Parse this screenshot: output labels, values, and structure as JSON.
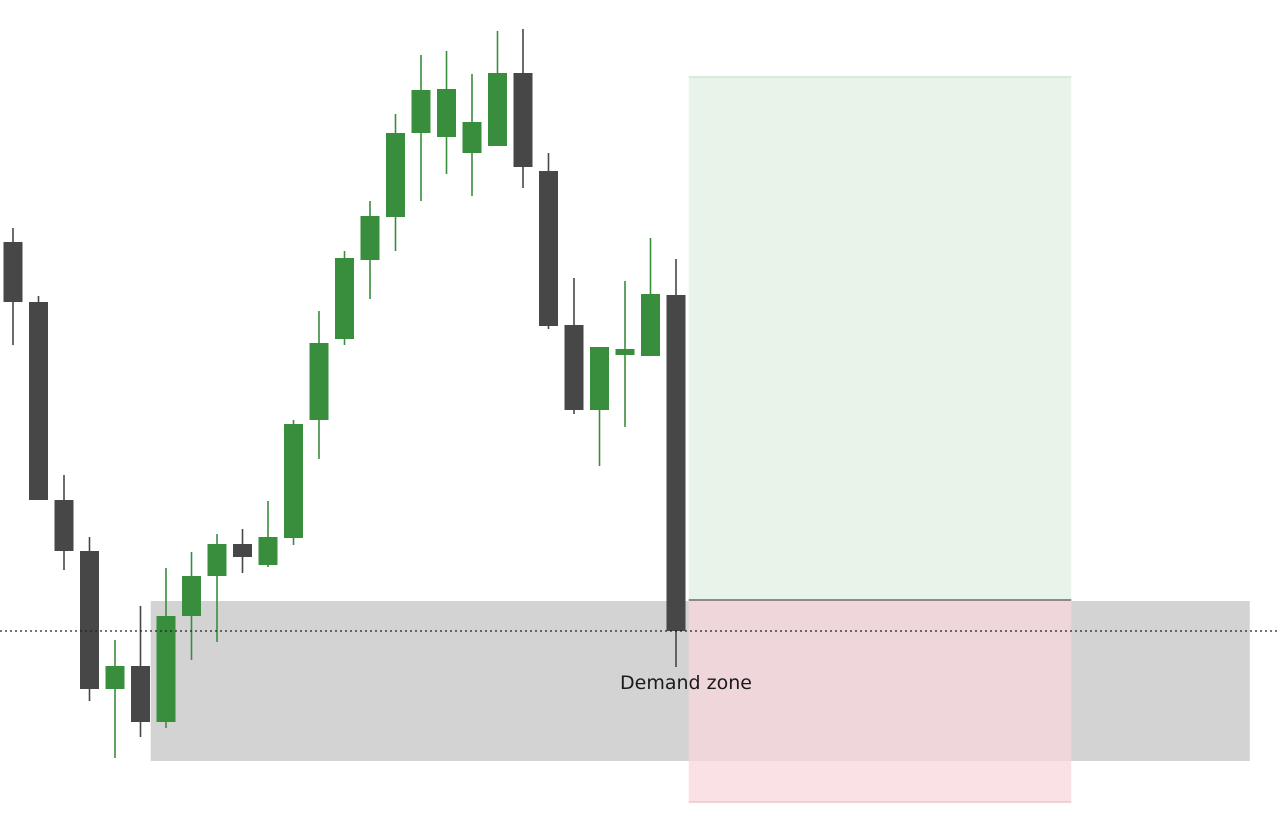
{
  "chart_data": {
    "type": "candlestick",
    "title": "",
    "xlabel": "",
    "ylabel": "",
    "grid": false,
    "axes_visible": false,
    "ylim": [
      0,
      823
    ],
    "colors": {
      "bullish": "#388e3c",
      "bearish": "#474747",
      "demand_zone": "#d3d3d3",
      "profit_zone": "#e0f0e2",
      "loss_zone": "#f8d7dd",
      "price_line": "#222222"
    },
    "candles": [
      {
        "open": 581,
        "high": 595,
        "low": 478,
        "close": 521
      },
      {
        "open": 521,
        "high": 527,
        "low": 323,
        "close": 323
      },
      {
        "open": 323,
        "high": 348,
        "low": 253,
        "close": 272
      },
      {
        "open": 272,
        "high": 286,
        "low": 122,
        "close": 134
      },
      {
        "open": 134,
        "high": 183,
        "low": 65,
        "close": 157
      },
      {
        "open": 157,
        "high": 217,
        "low": 86,
        "close": 101
      },
      {
        "open": 101,
        "high": 255,
        "low": 95,
        "close": 207
      },
      {
        "open": 207,
        "high": 271,
        "low": 163,
        "close": 247
      },
      {
        "open": 247,
        "high": 289,
        "low": 181,
        "close": 279
      },
      {
        "open": 279,
        "high": 294,
        "low": 250,
        "close": 266
      },
      {
        "open": 258,
        "high": 322,
        "low": 256,
        "close": 286
      },
      {
        "open": 285,
        "high": 403,
        "low": 278,
        "close": 399
      },
      {
        "open": 403,
        "high": 512,
        "low": 364,
        "close": 480
      },
      {
        "open": 484,
        "high": 572,
        "low": 478,
        "close": 565
      },
      {
        "open": 563,
        "high": 622,
        "low": 524,
        "close": 607
      },
      {
        "open": 606,
        "high": 709,
        "low": 572,
        "close": 690
      },
      {
        "open": 690,
        "high": 768,
        "low": 622,
        "close": 733
      },
      {
        "open": 686,
        "high": 772,
        "low": 649,
        "close": 734
      },
      {
        "open": 670,
        "high": 749,
        "low": 627,
        "close": 701
      },
      {
        "open": 677,
        "high": 792,
        "low": 678,
        "close": 750
      },
      {
        "open": 750,
        "high": 794,
        "low": 635,
        "close": 656
      },
      {
        "open": 652,
        "high": 670,
        "low": 494,
        "close": 497
      },
      {
        "open": 498,
        "high": 545,
        "low": 409,
        "close": 413
      },
      {
        "open": 413,
        "high": 474,
        "low": 357,
        "close": 476
      },
      {
        "open": 468,
        "high": 542,
        "low": 396,
        "close": 474
      },
      {
        "open": 467,
        "high": 585,
        "low": 469,
        "close": 529
      },
      {
        "open": 528,
        "high": 564,
        "low": 156,
        "close": 192
      }
    ],
    "current_price": 192,
    "annotations": [
      {
        "type": "zone",
        "name": "demand_zone",
        "label": "Demand zone",
        "y_top": 222,
        "y_bottom": 62,
        "x_start_candle": 5.4,
        "x_end_candle": 48.5
      },
      {
        "type": "zone",
        "name": "profit_zone",
        "label": "",
        "y_top": 746,
        "y_bottom": 223,
        "x_start_candle": 26.5,
        "x_end_candle": 41.5
      },
      {
        "type": "zone",
        "name": "loss_zone",
        "label": "",
        "y_top": 223,
        "y_bottom": 21,
        "x_start_candle": 26.5,
        "x_end_candle": 41.5
      }
    ]
  }
}
